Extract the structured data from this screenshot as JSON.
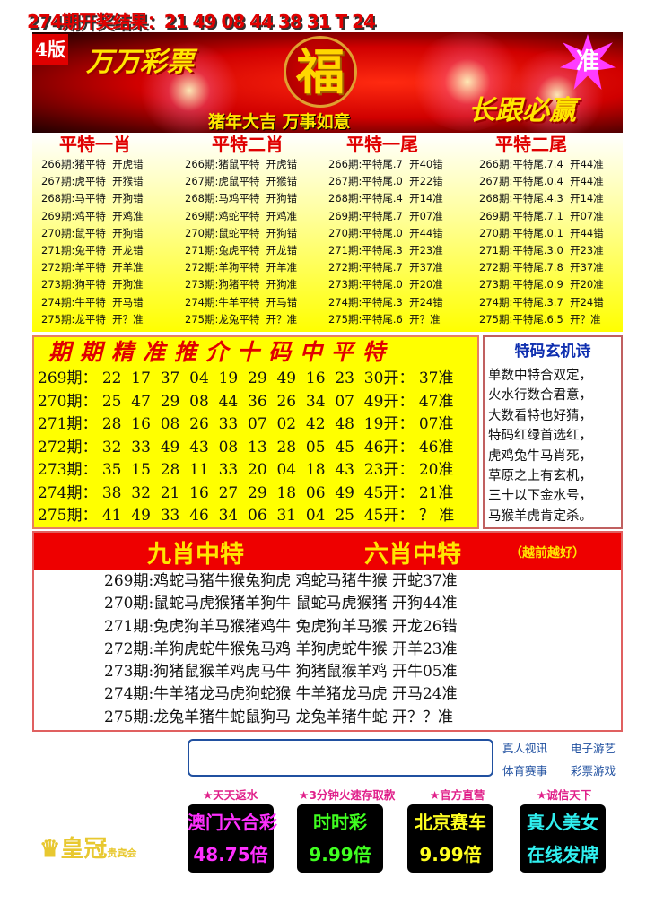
{
  "header": {
    "result_text": "274期开奖结果：21 49 08 44 38 31 T 24"
  },
  "banner": {
    "edition": "4版",
    "brand": "万万彩票",
    "center_char": "福",
    "slogan": "猪年大吉  万事如意",
    "slogan_right": "长跟必赢",
    "star_badge": "准"
  },
  "tables": [
    {
      "title": "平特一肖",
      "rows": [
        "266期:猪平特  开虎错",
        "267期:虎平特  开猴错",
        "268期:马平特  开狗错",
        "269期:鸡平特  开鸡准",
        "270期:鼠平特  开狗错",
        "271期:兔平特  开龙错",
        "272期:羊平特  开羊准",
        "273期:狗平特  开狗准",
        "274期:牛平特  开马错",
        "275期:龙平特  开？准"
      ]
    },
    {
      "title": "平特二肖",
      "rows": [
        "266期:猪鼠平特  开虎错",
        "267期:虎鼠平特  开猴错",
        "268期:马鸡平特  开狗错",
        "269期:鸡蛇平特  开鸡准",
        "270期:鼠蛇平特  开狗错",
        "271期:兔虎平特  开龙错",
        "272期:羊狗平特  开羊准",
        "273期:狗猪平特  开狗准",
        "274期:牛羊平特  开马错",
        "275期:龙兔平特  开？准"
      ]
    },
    {
      "title": "平特一尾",
      "rows": [
        "266期:平特尾.7  开40错",
        "267期:平特尾.0  开22错",
        "268期:平特尾.4  开14准",
        "269期:平特尾.7  开07准",
        "270期:平特尾.0  开44错",
        "271期:平特尾.3  开23准",
        "272期:平特尾.7  开37准",
        "273期:平特尾.0  开20准",
        "274期:平特尾.3  开24错",
        "275期:平特尾.6  开？准"
      ]
    },
    {
      "title": "平特二尾",
      "rows": [
        "266期:平特尾.7.4  开44准",
        "267期:平特尾.0.4  开44准",
        "268期:平特尾.4.3  开14准",
        "269期:平特尾.7.1  开07准",
        "270期:平特尾.0.1  开44错",
        "271期:平特尾.3.0  开23准",
        "272期:平特尾.7.8  开37准",
        "273期:平特尾.0.9  开20准",
        "274期:平特尾.3.7  开24错",
        "275期:平特尾.6.5  开？准"
      ]
    }
  ],
  "ten_codes": {
    "title": "期期精准推介十码中平特",
    "rows": [
      "269期： 22  17  37  04  19  29  49  16  23  30开： 37准",
      "270期： 25  47  29  08  44  36  26  34  07  49开： 47准",
      "271期： 28  16  08  26  33  07  02  42  48  19开： 07准",
      "272期： 32  33  49  43  08  13  28  05  45  46开： 46准",
      "273期： 35  15  28  11  33  20  04  18  43  23开： 20准",
      "274期： 38  32  21  16  27  29  18  06  49  45开： 21准",
      "275期： 41  49  33  46  34  06  31  04  25  45开： ？ 准"
    ]
  },
  "poem": {
    "title": "特码玄机诗",
    "lines": [
      "单数中特合双定，",
      "火水行数合君意，",
      "大数看特也好猜，",
      "特码红绿首选红，",
      "虎鸡兔牛马肖死，",
      "草原之上有玄机，",
      "三十以下金水号，",
      "马猴羊虎肯定杀。"
    ]
  },
  "zodiac": {
    "title_nine": "九肖中特",
    "title_six": "六肖中特",
    "note": "（越前越好）",
    "rows": [
      "269期:鸡蛇马猪牛猴兔狗虎 鸡蛇马猪牛猴 开蛇37准",
      "270期:鼠蛇马虎猴猪羊狗牛 鼠蛇马虎猴猪 开狗44准",
      "271期:兔虎狗羊马猴猪鸡牛 兔虎狗羊马猴 开龙26错",
      "272期:羊狗虎蛇牛猴兔马鸡 羊狗虎蛇牛猴 开羊23准",
      "273期:狗猪鼠猴羊鸡虎马牛 狗猪鼠猴羊鸡 开牛05准",
      "274期:牛羊猪龙马虎狗蛇猴 牛羊猪龙马虎 开马24准",
      "275期:龙兔羊猪牛蛇鼠狗马 龙兔羊猪牛蛇 开？？准"
    ]
  },
  "footer": {
    "logo_text": "皇冠",
    "logo_sub": "贵宾会",
    "links": [
      "真人视讯",
      "电子游艺",
      "体育赛事",
      "彩票游戏"
    ],
    "tags": [
      "★天天返水",
      "★3分钟火速存取款",
      "★官方直营",
      "★诚信天下"
    ],
    "cards": [
      {
        "line1": "澳门六合彩",
        "line2": "48.75倍",
        "color": "#ff30ff"
      },
      {
        "line1": "时时彩",
        "line2": "9.99倍",
        "color": "#40ff20"
      },
      {
        "line1": "北京赛车",
        "line2": "9.99倍",
        "color": "#ffff20"
      },
      {
        "line1": "真人美女",
        "line2": "在线发牌",
        "color": "#30f0f0"
      }
    ]
  }
}
